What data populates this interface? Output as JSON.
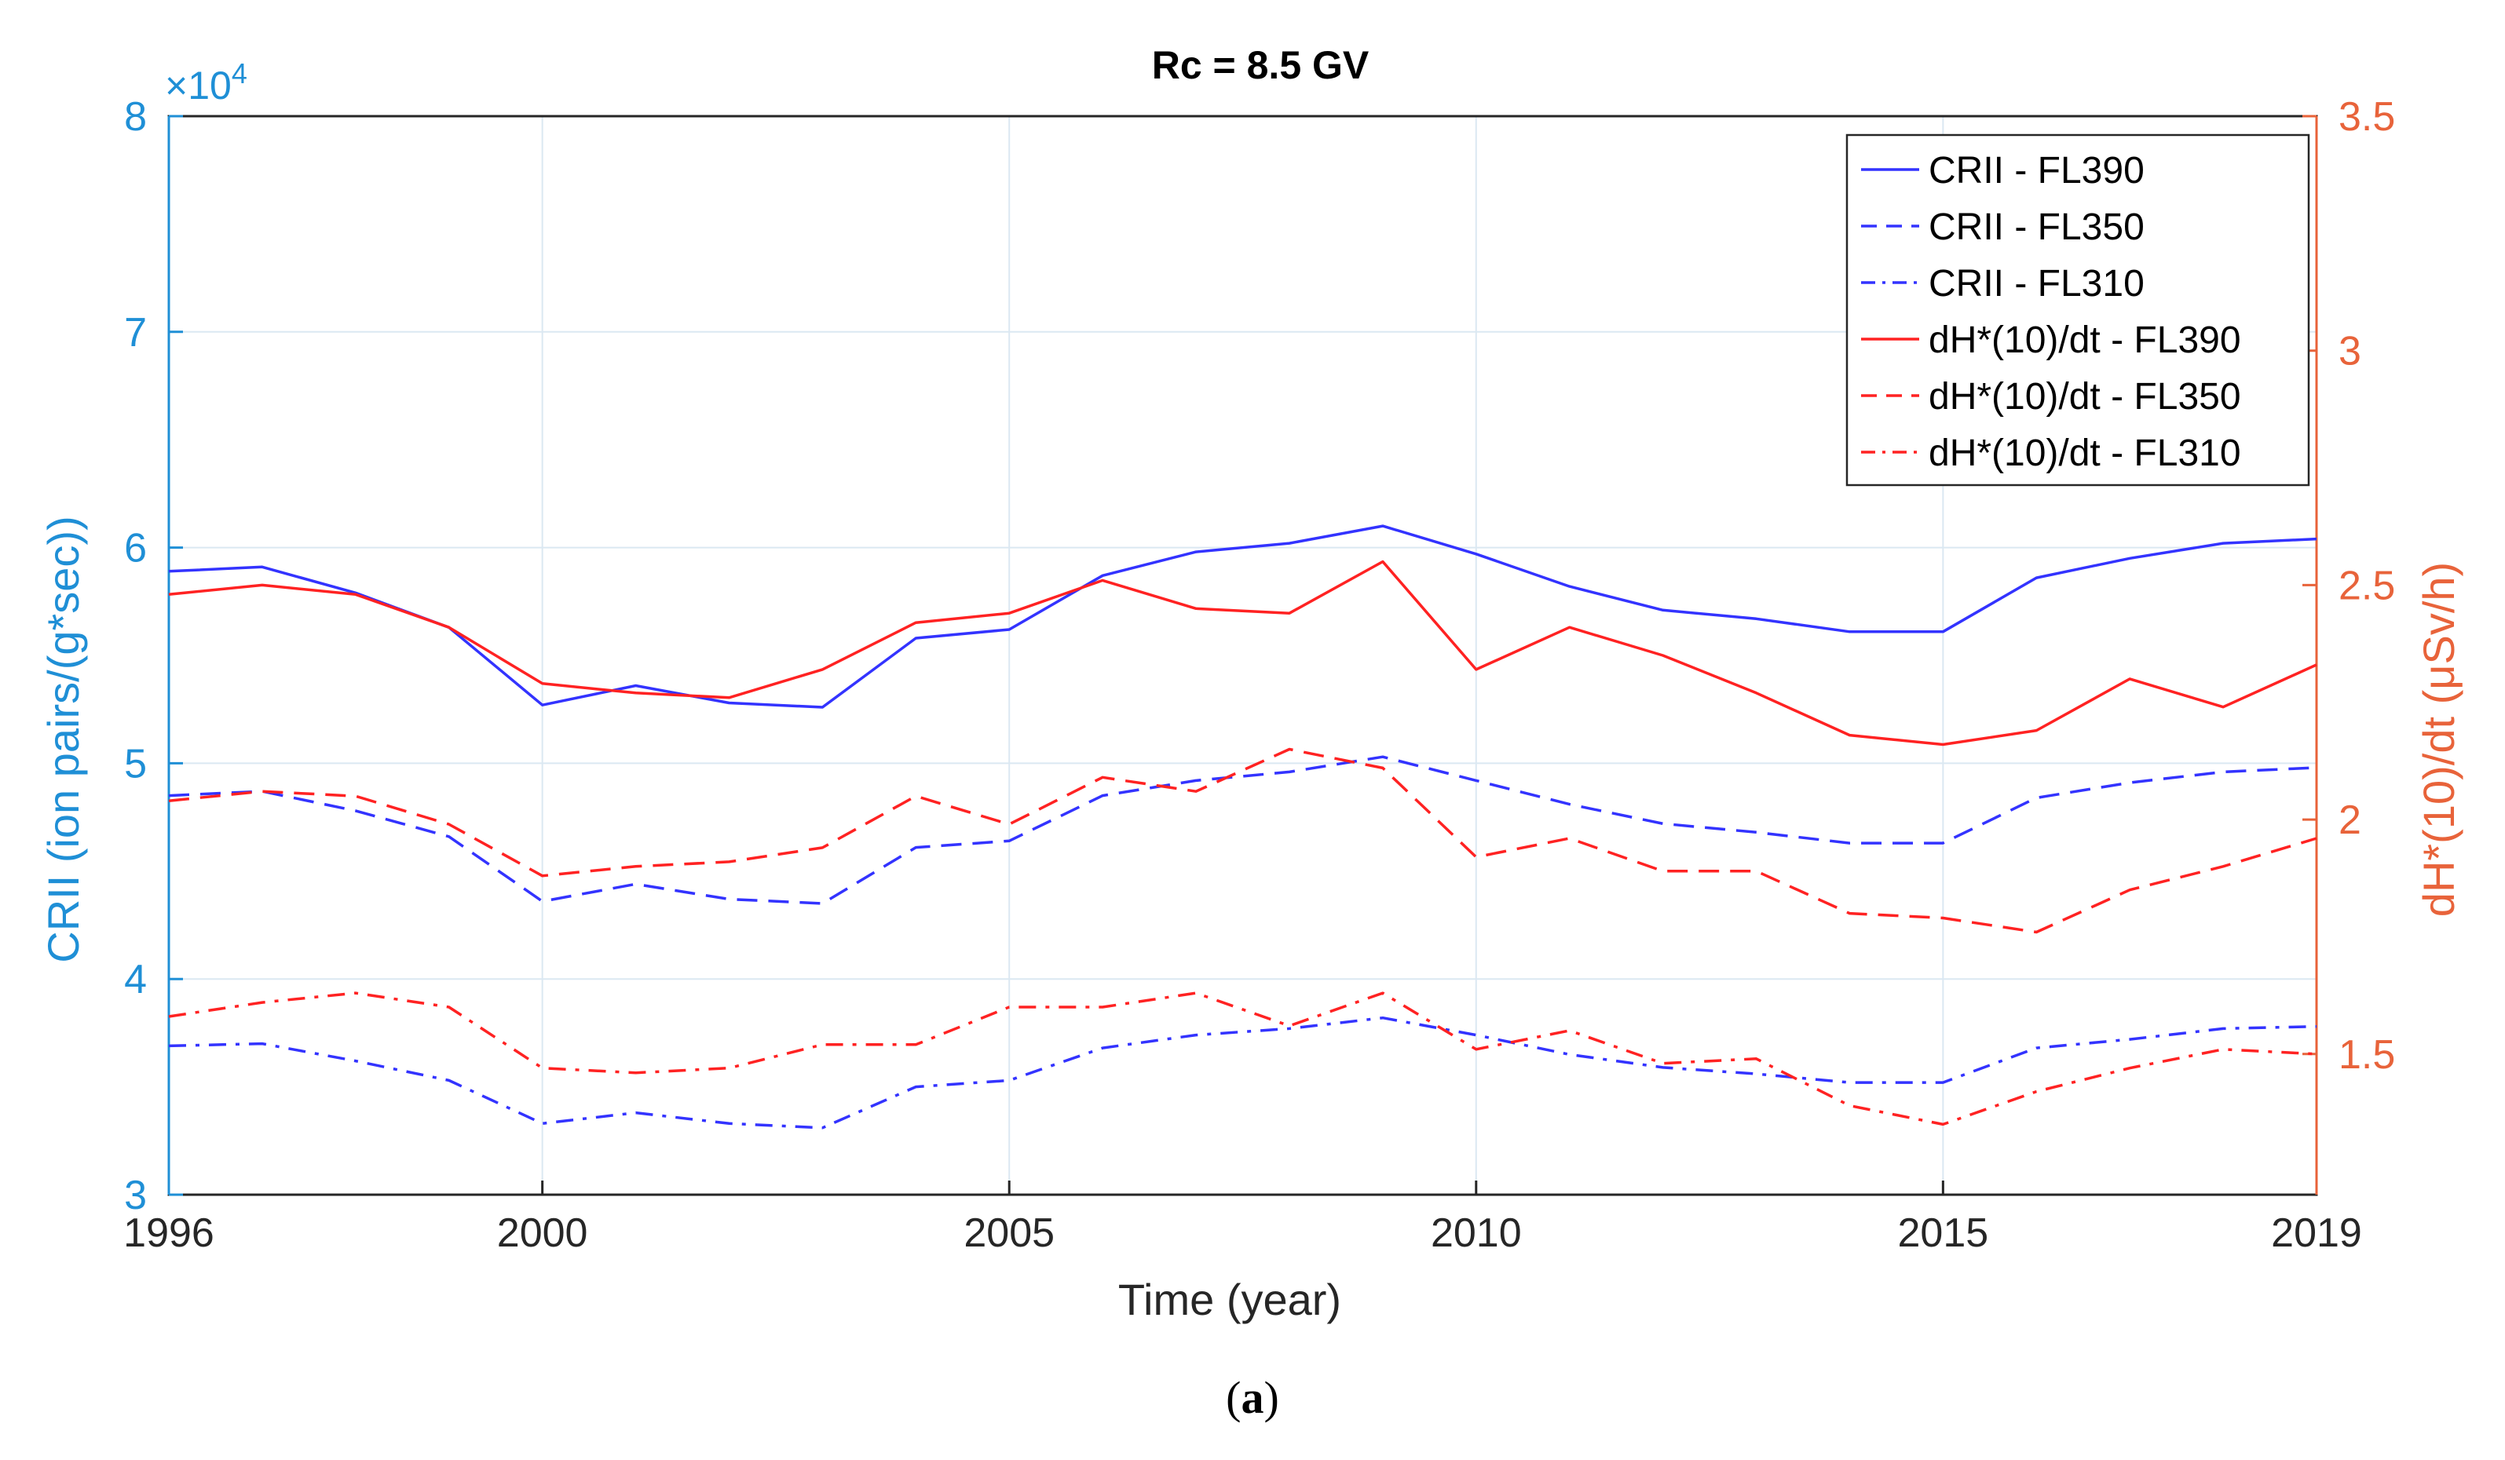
{
  "chart_data": {
    "type": "line",
    "title": "Rc = 8.5 GV",
    "xlabel": "Time (year)",
    "ylabel_left": "CRII (ion pairs/(g*sec))",
    "ylabel_right": "dH*(10)/dt (μSv/h)",
    "left_scale_base": "×10",
    "left_scale_exp": "4",
    "caption_open": "(",
    "caption_letter": "a",
    "caption_close": ")",
    "xlim": [
      1996,
      2019
    ],
    "ylim_left": [
      3,
      8
    ],
    "ylim_right": [
      1.2,
      3.5
    ],
    "xticks": [
      1996,
      2000,
      2005,
      2010,
      2015,
      2019
    ],
    "yticks_left": [
      3,
      4,
      5,
      6,
      7,
      8
    ],
    "yticks_right": [
      1.5,
      2,
      2.5,
      3,
      3.5
    ],
    "grid": true,
    "legend_position": "top-right",
    "colors": {
      "left_axis": "#1f8fd6",
      "right_axis": "#e8633a",
      "blue": "#3333ff",
      "red": "#ff2222",
      "grid": "#dbe8f2",
      "text": "#262626"
    },
    "x": [
      1996,
      1997,
      1998,
      1999,
      2000,
      2001,
      2002,
      2003,
      2004,
      2005,
      2006,
      2007,
      2008,
      2009,
      2010,
      2011,
      2012,
      2013,
      2014,
      2015,
      2016,
      2017,
      2018,
      2019
    ],
    "series": [
      {
        "name": "CRII - FL390",
        "axis": "left",
        "color": "blue",
        "style": "solid",
        "values": [
          5.89,
          5.91,
          5.79,
          5.63,
          5.27,
          5.36,
          5.28,
          5.26,
          5.58,
          5.62,
          5.87,
          5.98,
          6.02,
          6.1,
          5.97,
          5.82,
          5.71,
          5.67,
          5.61,
          5.61,
          5.86,
          5.95,
          6.02,
          6.04
        ]
      },
      {
        "name": "CRII - FL350",
        "axis": "left",
        "color": "blue",
        "style": "dashed",
        "values": [
          4.85,
          4.87,
          4.78,
          4.66,
          4.36,
          4.44,
          4.37,
          4.35,
          4.61,
          4.64,
          4.85,
          4.92,
          4.96,
          5.03,
          4.92,
          4.81,
          4.72,
          4.68,
          4.63,
          4.63,
          4.84,
          4.91,
          4.96,
          4.98
        ]
      },
      {
        "name": "CRII - FL310",
        "axis": "left",
        "color": "blue",
        "style": "dashdot",
        "values": [
          3.69,
          3.7,
          3.62,
          3.53,
          3.33,
          3.38,
          3.33,
          3.31,
          3.5,
          3.53,
          3.68,
          3.74,
          3.77,
          3.82,
          3.74,
          3.65,
          3.59,
          3.56,
          3.52,
          3.52,
          3.68,
          3.72,
          3.77,
          3.78
        ]
      },
      {
        "name": "dH*(10)/dt - FL390",
        "axis": "right",
        "color": "red",
        "style": "solid",
        "values": [
          2.48,
          2.5,
          2.48,
          2.41,
          2.29,
          2.27,
          2.26,
          2.32,
          2.42,
          2.44,
          2.51,
          2.45,
          2.44,
          2.55,
          2.32,
          2.41,
          2.35,
          2.27,
          2.18,
          2.16,
          2.19,
          2.3,
          2.24,
          2.33
        ]
      },
      {
        "name": "dH*(10)/dt - FL350",
        "axis": "right",
        "color": "red",
        "style": "dashed",
        "values": [
          2.04,
          2.06,
          2.05,
          1.99,
          1.88,
          1.9,
          1.91,
          1.94,
          2.05,
          1.99,
          2.09,
          2.06,
          2.15,
          2.11,
          1.92,
          1.96,
          1.89,
          1.89,
          1.8,
          1.79,
          1.76,
          1.85,
          1.9,
          1.96
        ]
      },
      {
        "name": "dH*(10)/dt - FL310",
        "axis": "right",
        "color": "red",
        "style": "dashdot",
        "values": [
          1.58,
          1.61,
          1.63,
          1.6,
          1.47,
          1.46,
          1.47,
          1.52,
          1.52,
          1.6,
          1.6,
          1.63,
          1.56,
          1.63,
          1.51,
          1.55,
          1.48,
          1.49,
          1.39,
          1.35,
          1.42,
          1.47,
          1.51,
          1.5
        ]
      }
    ]
  }
}
